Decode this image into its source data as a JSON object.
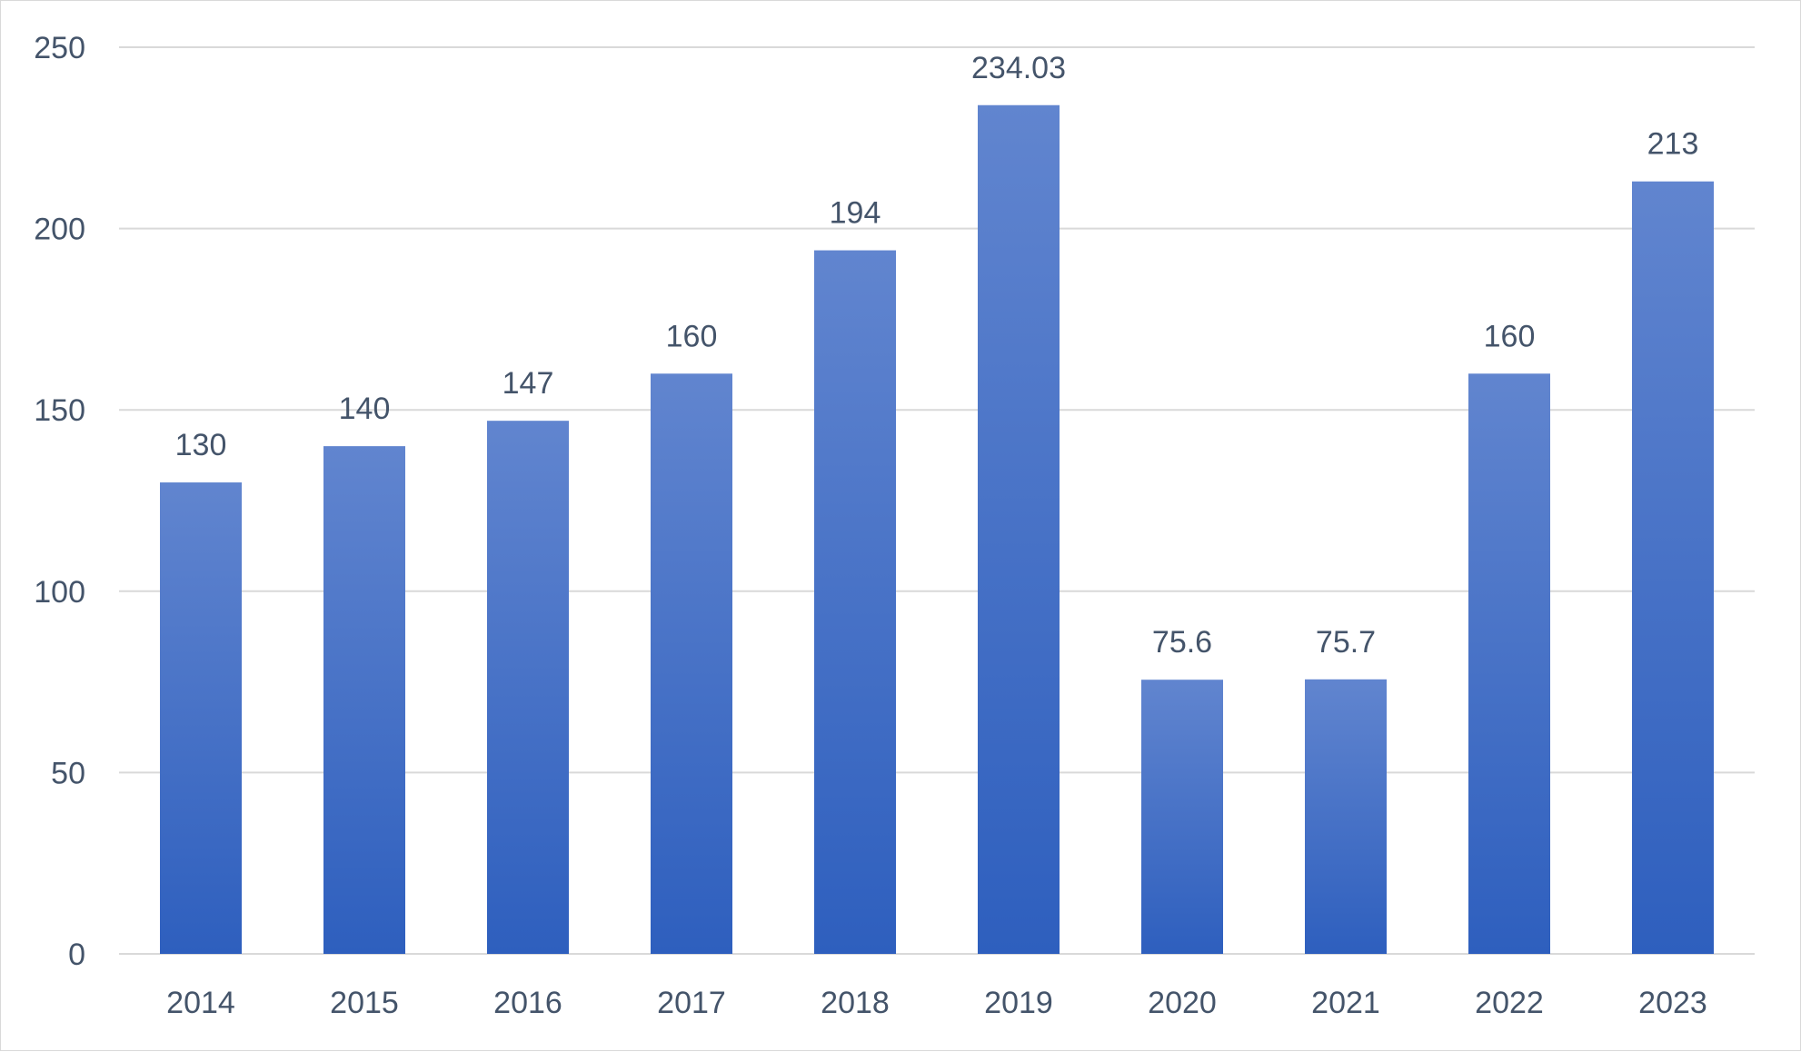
{
  "chart_data": {
    "type": "bar",
    "categories": [
      "2014",
      "2015",
      "2016",
      "2017",
      "2018",
      "2019",
      "2020",
      "2021",
      "2022",
      "2023"
    ],
    "values": [
      130,
      140,
      147,
      160,
      194,
      234.03,
      75.6,
      75.7,
      160,
      213
    ],
    "value_labels": [
      "130",
      "140",
      "147",
      "160",
      "194",
      "234.03",
      "75.6",
      "75.7",
      "160",
      "213"
    ],
    "title": "",
    "xlabel": "",
    "ylabel": "",
    "ylim": [
      0,
      250
    ],
    "yticks": [
      0,
      50,
      100,
      150,
      200,
      250
    ],
    "ytick_labels": [
      "0",
      "50",
      "100",
      "150",
      "200",
      "250"
    ],
    "grid": true,
    "legend": "none",
    "colors": {
      "bar_top": "#6185cf",
      "bar_bottom": "#2e5fbe",
      "gridline": "#d9d9d9",
      "text": "#44546a"
    }
  }
}
